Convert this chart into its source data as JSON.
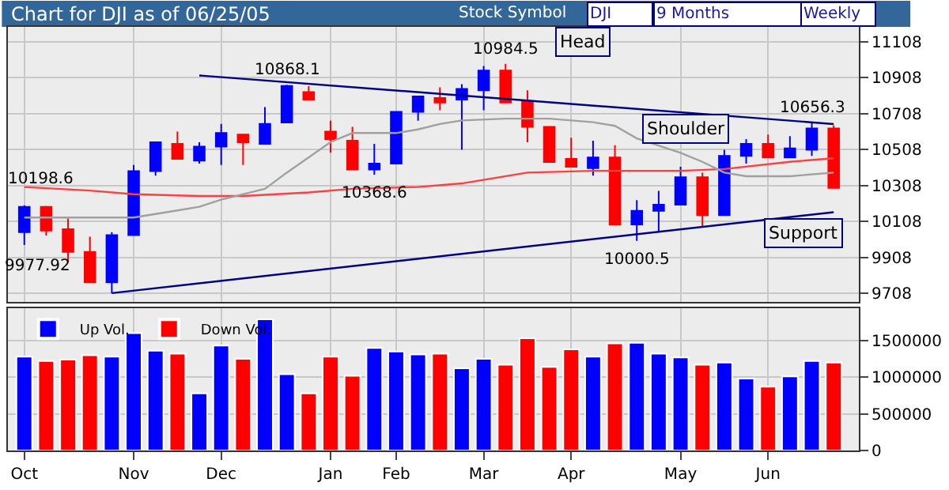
{
  "chart_data": [
    {
      "type": "candlestick",
      "title": "Chart for DJI as of 06/25/05",
      "categories": [
        "Oct",
        null,
        null,
        null,
        null,
        "Nov",
        null,
        null,
        null,
        "Dec",
        null,
        null,
        null,
        null,
        "Jan",
        null,
        null,
        "Feb",
        null,
        null,
        null,
        "Mar",
        null,
        null,
        null,
        "Apr",
        null,
        null,
        null,
        null,
        "May",
        null,
        null,
        null,
        "Jun",
        null,
        null,
        null
      ],
      "ohlc": [
        [
          10049,
          10198.6,
          9977.92,
          10190
        ],
        [
          10190,
          10195,
          10030,
          10058
        ],
        [
          10066,
          10126,
          9880,
          9939
        ],
        [
          9939,
          10024,
          9770,
          9770
        ],
        [
          9770,
          10049,
          9710,
          10032
        ],
        [
          10032,
          10422,
          10032,
          10388
        ],
        [
          10388,
          10549,
          10363,
          10549
        ],
        [
          10540,
          10608,
          10456,
          10456
        ],
        [
          10447,
          10549,
          10430,
          10524
        ],
        [
          10524,
          10651,
          10422,
          10600
        ],
        [
          10591,
          10591,
          10422,
          10549
        ],
        [
          10540,
          10744,
          10540,
          10651
        ],
        [
          10659,
          10868.1,
          10659,
          10862
        ],
        [
          10828,
          10860,
          10786,
          10786
        ],
        [
          10608,
          10668,
          10490,
          10566
        ],
        [
          10557,
          10634,
          10397,
          10397
        ],
        [
          10397,
          10540,
          10368.6,
          10430
        ],
        [
          10430,
          10718,
          10430,
          10718
        ],
        [
          10718,
          10803,
          10668,
          10803
        ],
        [
          10795,
          10854,
          10727,
          10769
        ],
        [
          10786,
          10871,
          10507,
          10845
        ],
        [
          10837,
          10972,
          10727,
          10947
        ],
        [
          10947,
          10984.5,
          10769,
          10769
        ],
        [
          10778,
          10837,
          10549,
          10634
        ],
        [
          10634,
          10634,
          10439,
          10439
        ],
        [
          10456,
          10574,
          10413,
          10413
        ],
        [
          10405,
          10557,
          10363,
          10464
        ],
        [
          10464,
          10532,
          10092,
          10092
        ],
        [
          10092,
          10227,
          10000.5,
          10168
        ],
        [
          10168,
          10278,
          10049,
          10202
        ],
        [
          10202,
          10413,
          10202,
          10354
        ],
        [
          10354,
          10380,
          10083,
          10143
        ],
        [
          10143,
          10507,
          10143,
          10473
        ],
        [
          10473,
          10566,
          10430,
          10540
        ],
        [
          10540,
          10591,
          10464,
          10464
        ],
        [
          10464,
          10583,
          10464,
          10515
        ],
        [
          10507,
          10656.3,
          10473,
          10625
        ],
        [
          10625,
          10642,
          10295,
          10295
        ]
      ],
      "colors": [
        "#0000ff",
        "#ff0000",
        "#ff0000",
        "#ff0000",
        "#0000ff",
        "#0000ff",
        "#0000ff",
        "#ff0000",
        "#0000ff",
        "#0000ff",
        "#ff0000",
        "#0000ff",
        "#0000ff",
        "#ff0000",
        "#ff0000",
        "#ff0000",
        "#0000ff",
        "#0000ff",
        "#0000ff",
        "#ff0000",
        "#0000ff",
        "#0000ff",
        "#ff0000",
        "#ff0000",
        "#ff0000",
        "#ff0000",
        "#0000ff",
        "#ff0000",
        "#0000ff",
        "#0000ff",
        "#0000ff",
        "#ff0000",
        "#0000ff",
        "#0000ff",
        "#ff0000",
        "#0000ff",
        "#0000ff",
        "#ff0000"
      ],
      "value_labels": [
        null,
        null,
        null,
        null,
        null,
        null,
        null,
        null,
        null,
        null,
        null,
        null,
        "10868.1",
        null,
        null,
        null,
        "10368.6",
        null,
        null,
        null,
        null,
        null,
        "10984.5",
        null,
        null,
        null,
        null,
        null,
        "10000.5",
        null,
        null,
        null,
        null,
        null,
        null,
        null,
        "10656.3",
        null
      ],
      "series": [
        {
          "type": "line",
          "color": "#ff4040",
          "values": [
            10300,
            null,
            null,
            10280,
            null,
            10260,
            null,
            null,
            10250,
            null,
            10250,
            null,
            null,
            10270,
            null,
            10290,
            null,
            null,
            10300,
            null,
            10320,
            null,
            null,
            10380,
            null,
            null,
            10390,
            null,
            null,
            null,
            10390,
            null,
            10400,
            null,
            null,
            10440,
            null,
            10460
          ]
        },
        {
          "type": "line",
          "color": "#a0a0a0",
          "values": [
            10130,
            null,
            null,
            10130,
            null,
            10130,
            null,
            10170,
            10190,
            10230,
            null,
            10290,
            10380,
            null,
            10550,
            10600,
            null,
            10600,
            10620,
            10650,
            10670,
            null,
            10680,
            null,
            10680,
            null,
            10660,
            10640,
            10570,
            null,
            10490,
            10440,
            10380,
            10360,
            null,
            10360,
            null,
            10380
          ]
        },
        {
          "type": "line",
          "color": "#000080",
          "values": [
            null,
            null,
            null,
            null,
            null,
            null,
            null,
            null,
            10920,
            null,
            null,
            null,
            null,
            null,
            null,
            null,
            null,
            null,
            null,
            null,
            null,
            null,
            null,
            null,
            null,
            null,
            null,
            null,
            null,
            null,
            null,
            null,
            null,
            null,
            null,
            null,
            null,
            10650
          ]
        },
        {
          "type": "line",
          "color": "#000080",
          "values": [
            null,
            null,
            null,
            null,
            9710,
            null,
            null,
            null,
            null,
            null,
            null,
            null,
            null,
            null,
            null,
            null,
            null,
            null,
            null,
            null,
            null,
            null,
            null,
            null,
            null,
            null,
            null,
            null,
            null,
            null,
            null,
            null,
            null,
            null,
            null,
            null,
            null,
            10160
          ]
        }
      ],
      "ylim": [
        9660,
        11190
      ],
      "yticks": [
        9708,
        9908,
        10108,
        10308,
        10508,
        10708,
        10908,
        11108
      ],
      "grid": true,
      "tick_labels": "y",
      "annotations": [
        "10198.6",
        "9977.92",
        "Head",
        "Shoulder",
        "Support",
        "Stock Symbol",
        "DJI",
        "9 Months",
        "Weekly"
      ]
    },
    {
      "type": "bar",
      "categories": [
        "Oct",
        null,
        null,
        null,
        null,
        "Nov",
        null,
        null,
        null,
        "Dec",
        null,
        null,
        null,
        null,
        "Jan",
        null,
        null,
        "Feb",
        null,
        null,
        null,
        "Mar",
        null,
        null,
        null,
        "Apr",
        null,
        null,
        null,
        null,
        "May",
        null,
        null,
        null,
        "Jun",
        null,
        null,
        null
      ],
      "series": [
        {
          "name": "Up Vol.",
          "color": "#0000ff",
          "values": [
            1280000,
            null,
            null,
            null,
            1280000,
            1600000,
            1360000,
            null,
            780000,
            1430000,
            null,
            1790000,
            1040000,
            null,
            null,
            null,
            1400000,
            1350000,
            1310000,
            null,
            1120000,
            1250000,
            null,
            null,
            null,
            null,
            1280000,
            null,
            1470000,
            1320000,
            1270000,
            null,
            1200000,
            980000,
            null,
            1010000,
            1220000,
            null
          ]
        },
        {
          "name": "Down Vol.",
          "color": "#ff0000",
          "values": [
            null,
            1220000,
            1240000,
            1300000,
            null,
            null,
            null,
            1320000,
            null,
            null,
            1250000,
            null,
            null,
            780000,
            1280000,
            1020000,
            null,
            null,
            null,
            1320000,
            null,
            null,
            1170000,
            1530000,
            1140000,
            1380000,
            null,
            1460000,
            null,
            null,
            null,
            1170000,
            null,
            null,
            870000,
            null,
            null,
            1200000
          ]
        }
      ],
      "ylim": [
        0,
        1940000
      ],
      "yticks": [
        0,
        500000,
        1000000,
        1500000
      ],
      "grid": true,
      "legend": "top left"
    }
  ]
}
